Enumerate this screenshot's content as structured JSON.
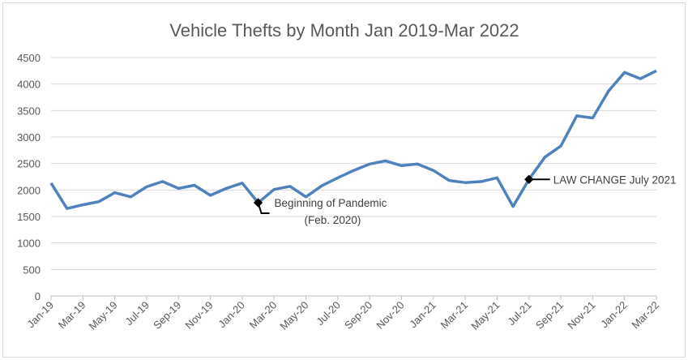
{
  "chart_data": {
    "type": "line",
    "title": "Vehicle Thefts by Month Jan 2019-Mar 2022",
    "xlabel": "",
    "ylabel": "",
    "ylim": [
      0,
      4500
    ],
    "yticks": [
      "0",
      "500",
      "1000",
      "1500",
      "2000",
      "2500",
      "3000",
      "3500",
      "4000",
      "4500"
    ],
    "grid": true,
    "legend": "none",
    "line_color": "#4f81bd",
    "x": [
      "Jan-19",
      "Feb-19",
      "Mar-19",
      "Apr-19",
      "May-19",
      "Jun-19",
      "Jul-19",
      "Aug-19",
      "Sep-19",
      "Oct-19",
      "Nov-19",
      "Dec-19",
      "Jan-20",
      "Feb-20",
      "Mar-20",
      "Apr-20",
      "May-20",
      "Jun-20",
      "Jul-20",
      "Aug-20",
      "Sep-20",
      "Oct-20",
      "Nov-20",
      "Dec-20",
      "Jan-21",
      "Feb-21",
      "Mar-21",
      "Apr-21",
      "May-21",
      "Jun-21",
      "Jul-21",
      "Aug-21",
      "Sep-21",
      "Oct-21",
      "Nov-21",
      "Dec-21",
      "Jan-22",
      "Feb-22",
      "Mar-22"
    ],
    "xtick_labels": [
      "Jan-19",
      "Mar-19",
      "May-19",
      "Jul-19",
      "Sep-19",
      "Nov-19",
      "Jan-20",
      "Mar-20",
      "May-20",
      "Jul-20",
      "Sep-20",
      "Nov-20",
      "Jan-21",
      "Mar-21",
      "May-21",
      "Jul-21",
      "Sep-21",
      "Nov-21",
      "Jan-22",
      "Mar-22"
    ],
    "values": [
      2130,
      1650,
      1720,
      1780,
      1950,
      1870,
      2060,
      2160,
      2030,
      2090,
      1900,
      2030,
      2130,
      1760,
      2010,
      2070,
      1870,
      2080,
      2230,
      2370,
      2490,
      2550,
      2460,
      2490,
      2370,
      2180,
      2140,
      2160,
      2230,
      1690,
      2200,
      2620,
      2830,
      3400,
      3360,
      3870,
      4220,
      4100,
      4250
    ],
    "annotations": [
      {
        "x": "Feb-20",
        "lines": [
          "Beginning of Pandemic",
          "(Feb. 2020)"
        ]
      },
      {
        "x": "Jul-21",
        "lines": [
          "LAW CHANGE July 2021"
        ]
      }
    ]
  }
}
